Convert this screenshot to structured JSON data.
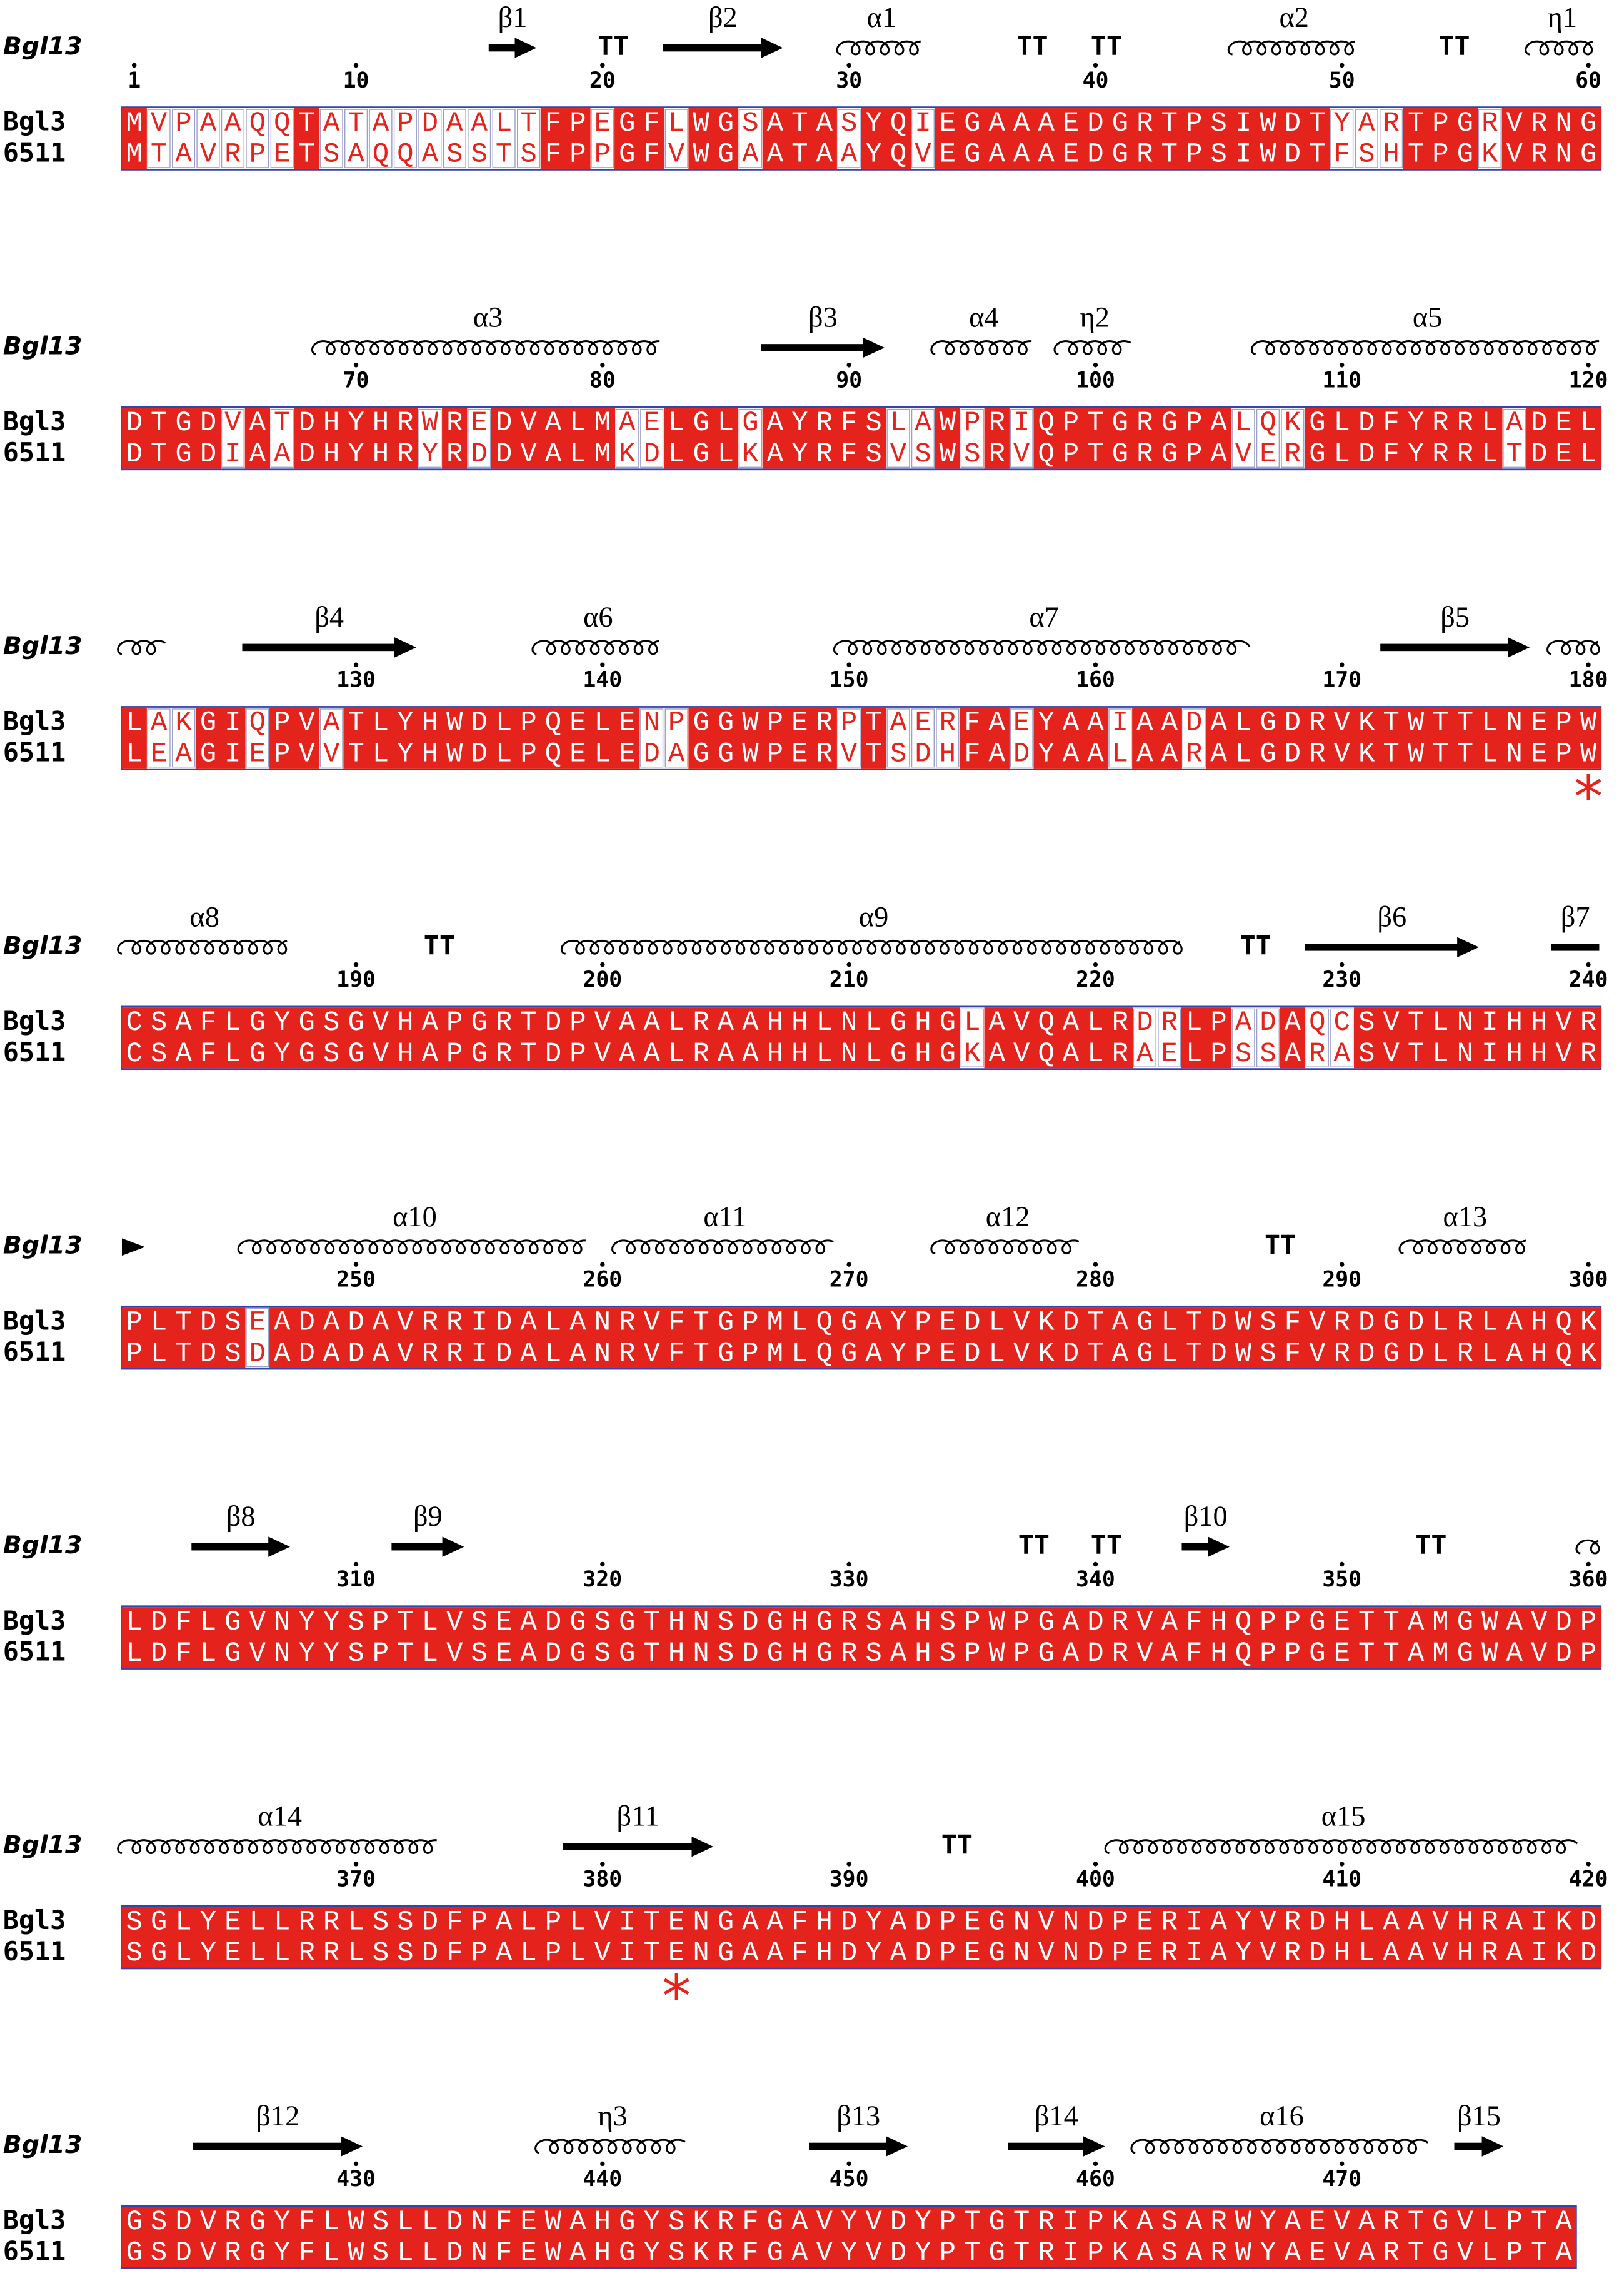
{
  "blocks": [
    {
      "ruler_label": "Bgl13",
      "structure": [
        "β1",
        "TT",
        "β2",
        "α1",
        "TT",
        "TT",
        "α2",
        "TT",
        "η1"
      ],
      "ruler": [
        1,
        10,
        20,
        30,
        40,
        50,
        60
      ],
      "rows": [
        {
          "name": "Bgl3",
          "sequence": "MVPAAQQTATAPDAALTFPEGFLWGSATASYQIEGAAAEDGRTPSIWDTYARTPGRVRNG"
        },
        {
          "name": "6511",
          "sequence": "MTAVRPETSAQQASSTSFPPGFVWGAATAAYQVEGAAAEDGRTPSIWDTFSHTPGKVRNG"
        }
      ]
    },
    {
      "ruler_label": "Bgl13",
      "structure": [
        "α3",
        "β3",
        "α4",
        "η2",
        "α5"
      ],
      "ruler": [
        70,
        80,
        90,
        100,
        110,
        120
      ],
      "rows": [
        {
          "name": "Bgl3",
          "sequence": "DTGDVATDHYHRWREDVALMAELGLGAYRFSLAWPRIQPTGRGPALQKGLDFYRRLADEL"
        },
        {
          "name": "6511",
          "sequence": "DTGDIAADHYHRYRDDVALMKDLGLKAYRFSVSWSRVQPTGRGPAVERGLDFYRRLTDEL"
        }
      ]
    },
    {
      "ruler_label": "Bgl13",
      "structure": [
        "β4",
        "α6",
        "α7",
        "β5"
      ],
      "ruler": [
        130,
        140,
        150,
        160,
        170,
        180
      ],
      "rows": [
        {
          "name": "Bgl3",
          "sequence": "LAKGIQPVATLYHWDLPQELENPGGWPERPTAERFAEYAAIAADALGDRVKTWTTLNEPW"
        },
        {
          "name": "6511",
          "sequence": "LEAGIEPVVTLYHWDLPQELEDAGGWPERVTSDHFADYAALAARALGDRVKTWTTLNEPW"
        }
      ],
      "annotation": "*"
    },
    {
      "ruler_label": "Bgl13",
      "structure": [
        "α8",
        "TT",
        "α9",
        "TT",
        "β6",
        "β7"
      ],
      "ruler": [
        190,
        200,
        210,
        220,
        230,
        240
      ],
      "rows": [
        {
          "name": "Bgl3",
          "sequence": "CSAFLGYGSGVHAPGRTDPVAALRAAHHLNLGHGLAVQALRDRLPADAQCSVTLNIHHVR"
        },
        {
          "name": "6511",
          "sequence": "CSAFLGYGSGVHAPGRTDPVAALRAAHHLNLGHGKAVQALRAELPSSARASVTLNIHHVR"
        }
      ]
    },
    {
      "ruler_label": "Bgl13",
      "structure": [
        "α10",
        "α11",
        "α12",
        "TT",
        "α13"
      ],
      "ruler": [
        250,
        260,
        270,
        280,
        290,
        300
      ],
      "rows": [
        {
          "name": "Bgl3",
          "sequence": "PLTDSEADADAVRRIDALANRVFTGPMLQGAYPEDLVKDTAGLTDWSFVRDGDLRLAHQK"
        },
        {
          "name": "6511",
          "sequence": "PLTDSDADADAVRRIDALANRVFTGPMLQGAYPEDLVKDTAGLTDWSFVRDGDLRLAHQK"
        }
      ]
    },
    {
      "ruler_label": "Bgl13",
      "structure": [
        "β8",
        "β9",
        "TT",
        "TT",
        "β10",
        "TT"
      ],
      "ruler": [
        310,
        320,
        330,
        340,
        350,
        360
      ],
      "rows": [
        {
          "name": "Bgl3",
          "sequence": "LDFLGVNYYSPTLVSEADGSGTHNSDGHGRSAHSPWPGADRVAFHQPPGETTAMGWAVDP"
        },
        {
          "name": "6511",
          "sequence": "LDFLGVNYYSPTLVSEADGSGTHNSDGHGRSAHSPWPGADRVAFHQPPGETTAMGWAVDP"
        }
      ]
    },
    {
      "ruler_label": "Bgl13",
      "structure": [
        "α14",
        "β11",
        "TT",
        "α15"
      ],
      "ruler": [
        370,
        380,
        390,
        400,
        410,
        420
      ],
      "rows": [
        {
          "name": "Bgl3",
          "sequence": "SGLYELLRRLSSDFPALPLVITENGAAFHDYADPEGNVNDPERIAYVRDHLAAVHRAIKD"
        },
        {
          "name": "6511",
          "sequence": "SGLYELLRRLSSDFPALPLVITENGAAFHDYADPEGNVNDPERIAYVRDHLAAVHRAIKD"
        }
      ],
      "annotation": "*"
    },
    {
      "ruler_label": "Bgl13",
      "structure": [
        "β12",
        "η3",
        "β13",
        "β14",
        "α16",
        "β15"
      ],
      "ruler": [
        430,
        440,
        450,
        460,
        470
      ],
      "rows": [
        {
          "name": "Bgl3",
          "sequence": "GSDVRGYFLWSLLDNFEWAHGYSKRFGAVYVDYPTGTRIPKASARWYAEVARTGVLPTA"
        },
        {
          "name": "6511",
          "sequence": "GSDVRGYFLWSLLDNFEWAHGYSKRFGAVYVDYPTGTRIPKASARWYAEVARTGVLPTA"
        }
      ]
    }
  ]
}
